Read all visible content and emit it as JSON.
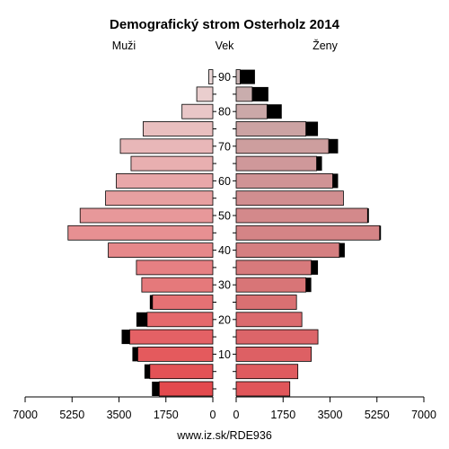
{
  "chart_data": {
    "type": "population-pyramid",
    "title": "Demografický strom Osterholz 2014",
    "left_label": "Muži",
    "center_label": "Vek",
    "right_label": "Ženy",
    "footer": "www.iz.sk/RDE936",
    "x_ticks_left": [
      "7000",
      "5250",
      "3500",
      "1750",
      "0"
    ],
    "x_ticks_right": [
      "0",
      "1750",
      "3500",
      "5250",
      "7000"
    ],
    "age_ticks": [
      "90",
      "80",
      "70",
      "60",
      "50",
      "40",
      "30",
      "20",
      "10"
    ],
    "xlim": [
      0,
      7000
    ],
    "age_groups": [
      "0-4",
      "5-9",
      "10-14",
      "15-19",
      "20-24",
      "25-29",
      "30-34",
      "35-39",
      "40-44",
      "45-49",
      "50-54",
      "55-59",
      "60-64",
      "65-69",
      "70-74",
      "75-79",
      "80-84",
      "85-89",
      "90+"
    ],
    "series": [
      {
        "name": "Muži",
        "base": [
          2000,
          2350,
          2800,
          3100,
          2450,
          2250,
          2650,
          2850,
          3900,
          5400,
          4950,
          4000,
          3600,
          3050,
          3450,
          2600,
          1150,
          600,
          150
        ],
        "excess": [
          270,
          200,
          200,
          300,
          400,
          100,
          0,
          0,
          0,
          0,
          0,
          0,
          0,
          0,
          0,
          0,
          0,
          0,
          0
        ]
      },
      {
        "name": "Ženy",
        "base": [
          2000,
          2300,
          2800,
          3050,
          2450,
          2250,
          2600,
          2800,
          3850,
          5350,
          4900,
          4000,
          3600,
          3000,
          3450,
          2600,
          1150,
          600,
          150
        ],
        "excess": [
          0,
          0,
          0,
          0,
          0,
          0,
          200,
          250,
          200,
          50,
          50,
          0,
          200,
          200,
          350,
          450,
          550,
          600,
          550
        ]
      }
    ],
    "colors": {
      "excess": "#000000",
      "outline": "#000000",
      "male_young": "#e34a4e",
      "male_old": "#ead6d6",
      "female_young": "#e0565a",
      "female_old": "#c8b2b2"
    }
  }
}
